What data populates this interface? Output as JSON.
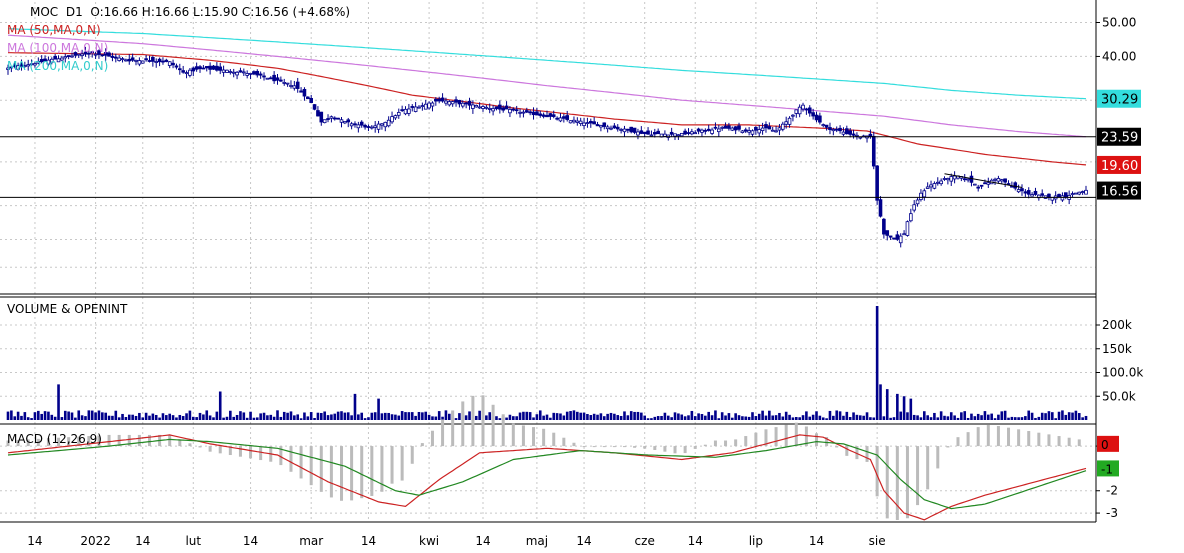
{
  "header": {
    "symbol": "MOC",
    "interval": "D1",
    "ohlc": "O:16.66  H:16.66  L:15.90  C:16.56  (+4.68%)"
  },
  "legend": {
    "ma50": "MA (50,MA,0,N)",
    "ma100": "MA (100,MA,0,N)",
    "ma200": "MA (200,MA,0,N)"
  },
  "panels": {
    "volume_title": "VOLUME & OPENINT",
    "macd_title": "MACD (12,26,9)"
  },
  "colors": {
    "candle_down": "#00008b",
    "candle_up_fill": "#ffffff",
    "ma50": "#cc2222",
    "ma100": "#cc77dd",
    "ma200": "#33dddd",
    "volume": "#00008b",
    "macd_line": "#cc2222",
    "signal_line": "#228822",
    "histogram": "#bbbbbb",
    "grid": "#c8c8c8",
    "horizontal_line": "#000000"
  },
  "chart_data": [
    {
      "type": "candlestick",
      "panel": "price",
      "y_scale": "log",
      "ylim": [
        8.5,
        55
      ],
      "y_ticks": [
        {
          "value": 50,
          "label": "50.00"
        },
        {
          "value": 40,
          "label": "40.00"
        }
      ],
      "x_ticks": [
        "14",
        "2022",
        "14",
        "lut",
        "14",
        "mar",
        "14",
        "kwi",
        "14",
        "maj",
        "14",
        "cze",
        "14",
        "lip",
        "14",
        "sie"
      ],
      "price_labels": [
        {
          "value": 30.29,
          "label": "30.29",
          "color": "#33dddd",
          "text_color": "#000000"
        },
        {
          "value": 23.59,
          "label": "23.59",
          "color": "#000000",
          "text_color": "#ffffff"
        },
        {
          "value": 19.6,
          "label": "19.60",
          "color": "#dd1111",
          "text_color": "#ffffff"
        },
        {
          "value": 16.56,
          "label": "16.56",
          "color": "#000000",
          "text_color": "#ffffff"
        }
      ],
      "horizontal_lines": [
        23.59,
        15.83
      ],
      "trend_line": [
        [
          278,
          18.5
        ],
        [
          301,
          16.9
        ]
      ],
      "close_path": [
        [
          0,
          37
        ],
        [
          6,
          38
        ],
        [
          12,
          39
        ],
        [
          18,
          40
        ],
        [
          25,
          41
        ],
        [
          30,
          40
        ],
        [
          36,
          39
        ],
        [
          42,
          39
        ],
        [
          48,
          38.5
        ],
        [
          52,
          36
        ],
        [
          58,
          37
        ],
        [
          64,
          36.5
        ],
        [
          70,
          36
        ],
        [
          76,
          35
        ],
        [
          80,
          34
        ],
        [
          85,
          33
        ],
        [
          88,
          31
        ],
        [
          90,
          29.5
        ],
        [
          93,
          26
        ],
        [
          96,
          27
        ],
        [
          100,
          26
        ],
        [
          104,
          25.5
        ],
        [
          108,
          25
        ],
        [
          112,
          26
        ],
        [
          117,
          28
        ],
        [
          123,
          29
        ],
        [
          128,
          30
        ],
        [
          133,
          29.5
        ],
        [
          138,
          29
        ],
        [
          143,
          28.5
        ],
        [
          150,
          28
        ],
        [
          155,
          27.5
        ],
        [
          160,
          27
        ],
        [
          165,
          26.5
        ],
        [
          170,
          26
        ],
        [
          175,
          25.5
        ],
        [
          180,
          25
        ],
        [
          185,
          24.5
        ],
        [
          190,
          24
        ],
        [
          195,
          24
        ],
        [
          200,
          24
        ],
        [
          206,
          24.5
        ],
        [
          212,
          25
        ],
        [
          216,
          24.8
        ],
        [
          220,
          24.5
        ],
        [
          224,
          25
        ],
        [
          228,
          24.5
        ],
        [
          231,
          26
        ],
        [
          234,
          28
        ],
        [
          236,
          29
        ],
        [
          239,
          27
        ],
        [
          243,
          25
        ],
        [
          247,
          24.5
        ],
        [
          250,
          24
        ],
        [
          253,
          23.6
        ],
        [
          256,
          23.6
        ],
        [
          258,
          15.5
        ],
        [
          259,
          14.0
        ],
        [
          260,
          12.5
        ],
        [
          262,
          12.2
        ],
        [
          264,
          12.0
        ],
        [
          266,
          12.5
        ],
        [
          267,
          13.5
        ],
        [
          269,
          15.0
        ],
        [
          271,
          16.2
        ],
        [
          273,
          17.0
        ],
        [
          276,
          17.5
        ],
        [
          279,
          18.0
        ],
        [
          282,
          18.2
        ],
        [
          285,
          17.8
        ],
        [
          288,
          17.0
        ],
        [
          291,
          17.5
        ],
        [
          294,
          18.0
        ],
        [
          296,
          17.5
        ],
        [
          299,
          16.8
        ],
        [
          303,
          16.2
        ],
        [
          306,
          16.0
        ],
        [
          310,
          15.9
        ],
        [
          314,
          16.0
        ],
        [
          317,
          16.3
        ],
        [
          320,
          16.56
        ]
      ],
      "series": [
        {
          "name": "MA (50,MA,0,N)",
          "color": "#cc2222",
          "points": [
            [
              0,
              41
            ],
            [
              40,
              40.5
            ],
            [
              60,
              39
            ],
            [
              80,
              37
            ],
            [
              100,
              34
            ],
            [
              120,
              31
            ],
            [
              150,
              28.5
            ],
            [
              180,
              26.5
            ],
            [
              200,
              25.5
            ],
            [
              220,
              25.5
            ],
            [
              240,
              25.0
            ],
            [
              255,
              24.5
            ],
            [
              270,
              22.5
            ],
            [
              290,
              21.0
            ],
            [
              310,
              20.0
            ],
            [
              320,
              19.6
            ]
          ]
        },
        {
          "name": "MA (100,MA,0,N)",
          "color": "#cc77dd",
          "points": [
            [
              0,
              46
            ],
            [
              40,
              43.5
            ],
            [
              80,
              40
            ],
            [
              120,
              36.5
            ],
            [
              160,
              33
            ],
            [
              200,
              30
            ],
            [
              240,
              28.0
            ],
            [
              260,
              27.0
            ],
            [
              280,
              25.5
            ],
            [
              300,
              24.4
            ],
            [
              320,
              23.59
            ]
          ]
        },
        {
          "name": "MA (200,MA,0,N)",
          "color": "#33dddd",
          "points": [
            [
              0,
              48
            ],
            [
              40,
              46.5
            ],
            [
              80,
              44
            ],
            [
              120,
              41.5
            ],
            [
              160,
              39
            ],
            [
              200,
              36.5
            ],
            [
              240,
              34.5
            ],
            [
              260,
              33.5
            ],
            [
              280,
              32.0
            ],
            [
              300,
              31.0
            ],
            [
              320,
              30.29
            ]
          ]
        }
      ]
    },
    {
      "type": "bar",
      "panel": "volume",
      "ylim": [
        0,
        240000
      ],
      "y_ticks": [
        {
          "value": 200000,
          "label": "200k"
        },
        {
          "value": 150000,
          "label": "150k"
        },
        {
          "value": 100000,
          "label": "100.0k"
        },
        {
          "value": 50000,
          "label": "50.0k"
        }
      ],
      "spikes": [
        [
          15,
          75000
        ],
        [
          63,
          60000
        ],
        [
          103,
          55000
        ],
        [
          110,
          45000
        ],
        [
          258,
          240000
        ],
        [
          259,
          75000
        ],
        [
          261,
          65000
        ],
        [
          264,
          55000
        ],
        [
          266,
          50000
        ],
        [
          268,
          45000
        ]
      ],
      "base_volume": 12000
    },
    {
      "type": "line",
      "panel": "macd",
      "ylim": [
        -3.4,
        0.9
      ],
      "y_ticks": [
        {
          "value": 0,
          "label": "0"
        },
        {
          "value": -2,
          "label": "-2"
        },
        {
          "value": -3,
          "label": "-3"
        }
      ],
      "value_labels": [
        {
          "value": 0.1,
          "label": "0",
          "color": "#dd1111"
        },
        {
          "value": -1.0,
          "label": "-1",
          "color": "#22aa22"
        }
      ],
      "series": [
        {
          "name": "MACD",
          "color": "#cc2222",
          "points": [
            [
              0,
              -0.3
            ],
            [
              30,
              0.2
            ],
            [
              48,
              0.5
            ],
            [
              60,
              0.1
            ],
            [
              80,
              -0.4
            ],
            [
              95,
              -1.6
            ],
            [
              110,
              -2.5
            ],
            [
              118,
              -2.7
            ],
            [
              128,
              -1.5
            ],
            [
              140,
              -0.3
            ],
            [
              160,
              -0.1
            ],
            [
              180,
              -0.3
            ],
            [
              200,
              -0.6
            ],
            [
              215,
              -0.3
            ],
            [
              225,
              0.1
            ],
            [
              235,
              0.5
            ],
            [
              242,
              0.4
            ],
            [
              250,
              -0.2
            ],
            [
              256,
              -0.6
            ],
            [
              260,
              -2.0
            ],
            [
              266,
              -3.0
            ],
            [
              272,
              -3.3
            ],
            [
              280,
              -2.7
            ],
            [
              290,
              -2.2
            ],
            [
              300,
              -1.8
            ],
            [
              310,
              -1.4
            ],
            [
              320,
              -1.0
            ]
          ]
        },
        {
          "name": "Signal",
          "color": "#228822",
          "points": [
            [
              0,
              -0.4
            ],
            [
              30,
              0.0
            ],
            [
              48,
              0.3
            ],
            [
              60,
              0.2
            ],
            [
              80,
              -0.1
            ],
            [
              100,
              -0.9
            ],
            [
              115,
              -2.0
            ],
            [
              122,
              -2.2
            ],
            [
              135,
              -1.6
            ],
            [
              150,
              -0.6
            ],
            [
              170,
              -0.2
            ],
            [
              190,
              -0.4
            ],
            [
              210,
              -0.5
            ],
            [
              225,
              -0.2
            ],
            [
              240,
              0.2
            ],
            [
              248,
              0.1
            ],
            [
              258,
              -0.4
            ],
            [
              265,
              -1.5
            ],
            [
              272,
              -2.4
            ],
            [
              280,
              -2.8
            ],
            [
              290,
              -2.6
            ],
            [
              300,
              -2.1
            ],
            [
              310,
              -1.6
            ],
            [
              320,
              -1.1
            ]
          ]
        }
      ]
    }
  ]
}
